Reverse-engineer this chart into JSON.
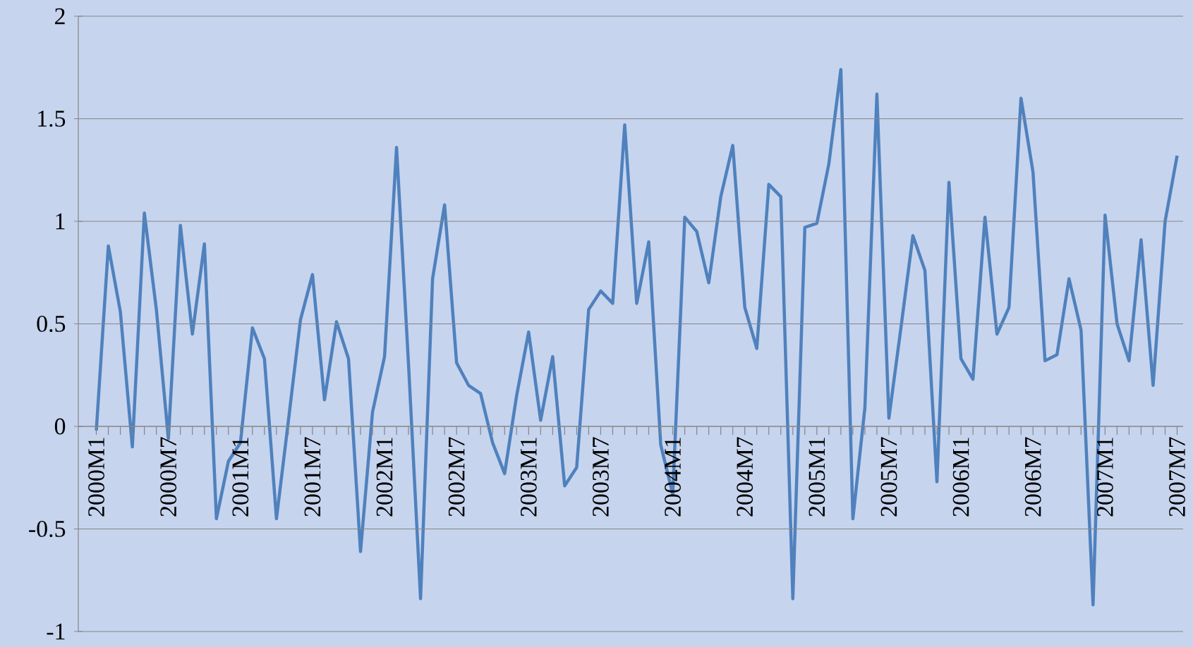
{
  "chart_data": {
    "type": "line",
    "categories": [
      "2000M1",
      null,
      null,
      null,
      null,
      null,
      "2000M7",
      null,
      null,
      null,
      null,
      null,
      "2001M1",
      null,
      null,
      null,
      null,
      null,
      "2001M7",
      null,
      null,
      null,
      null,
      null,
      "2002M1",
      null,
      null,
      null,
      null,
      null,
      "2002M7",
      null,
      null,
      null,
      null,
      null,
      "2003M1",
      null,
      null,
      null,
      null,
      null,
      "2003M7",
      null,
      null,
      null,
      null,
      null,
      "2004M1",
      null,
      null,
      null,
      null,
      null,
      "2004M7",
      null,
      null,
      null,
      null,
      null,
      "2005M1",
      null,
      null,
      null,
      null,
      null,
      "2005M7",
      null,
      null,
      null,
      null,
      null,
      "2006M1",
      null,
      null,
      null,
      null,
      null,
      "2006M7",
      null,
      null,
      null,
      null,
      null,
      "2007M1",
      null,
      null,
      null,
      null,
      null,
      "2007M7"
    ],
    "series": [
      {
        "color": "#4f81bd",
        "values": [
          -0.02,
          0.88,
          0.56,
          -0.1,
          1.04,
          0.57,
          -0.06,
          0.98,
          0.45,
          0.89,
          -0.45,
          -0.17,
          -0.08,
          0.48,
          0.33,
          -0.45,
          0.03,
          0.52,
          0.74,
          0.13,
          0.51,
          0.33,
          -0.61,
          0.07,
          0.34,
          1.36,
          0.3,
          -0.84,
          0.72,
          1.08,
          0.31,
          0.2,
          0.16,
          -0.08,
          -0.23,
          0.15,
          0.46,
          0.03,
          0.34,
          -0.29,
          -0.2,
          0.57,
          0.66,
          0.6,
          1.47,
          0.6,
          0.9,
          -0.09,
          -0.33,
          1.02,
          0.95,
          0.7,
          1.12,
          1.37,
          0.58,
          0.38,
          1.18,
          1.12,
          -0.84,
          0.97,
          0.99,
          1.28,
          1.74,
          -0.45,
          0.09,
          1.62,
          0.04,
          0.48,
          0.93,
          0.76,
          -0.27,
          1.19,
          0.33,
          0.23,
          1.02,
          0.45,
          0.58,
          1.6,
          1.24,
          0.32,
          0.35,
          0.72,
          0.47,
          -0.87,
          1.03,
          0.5,
          0.32,
          0.91,
          0.2,
          1.0,
          1.32
        ]
      }
    ],
    "ylim": [
      -1,
      2
    ],
    "yticks": [
      -1,
      -0.5,
      0,
      0.5,
      1,
      1.5,
      2
    ],
    "grid": "y",
    "marker": "none",
    "line_style": "solid"
  }
}
